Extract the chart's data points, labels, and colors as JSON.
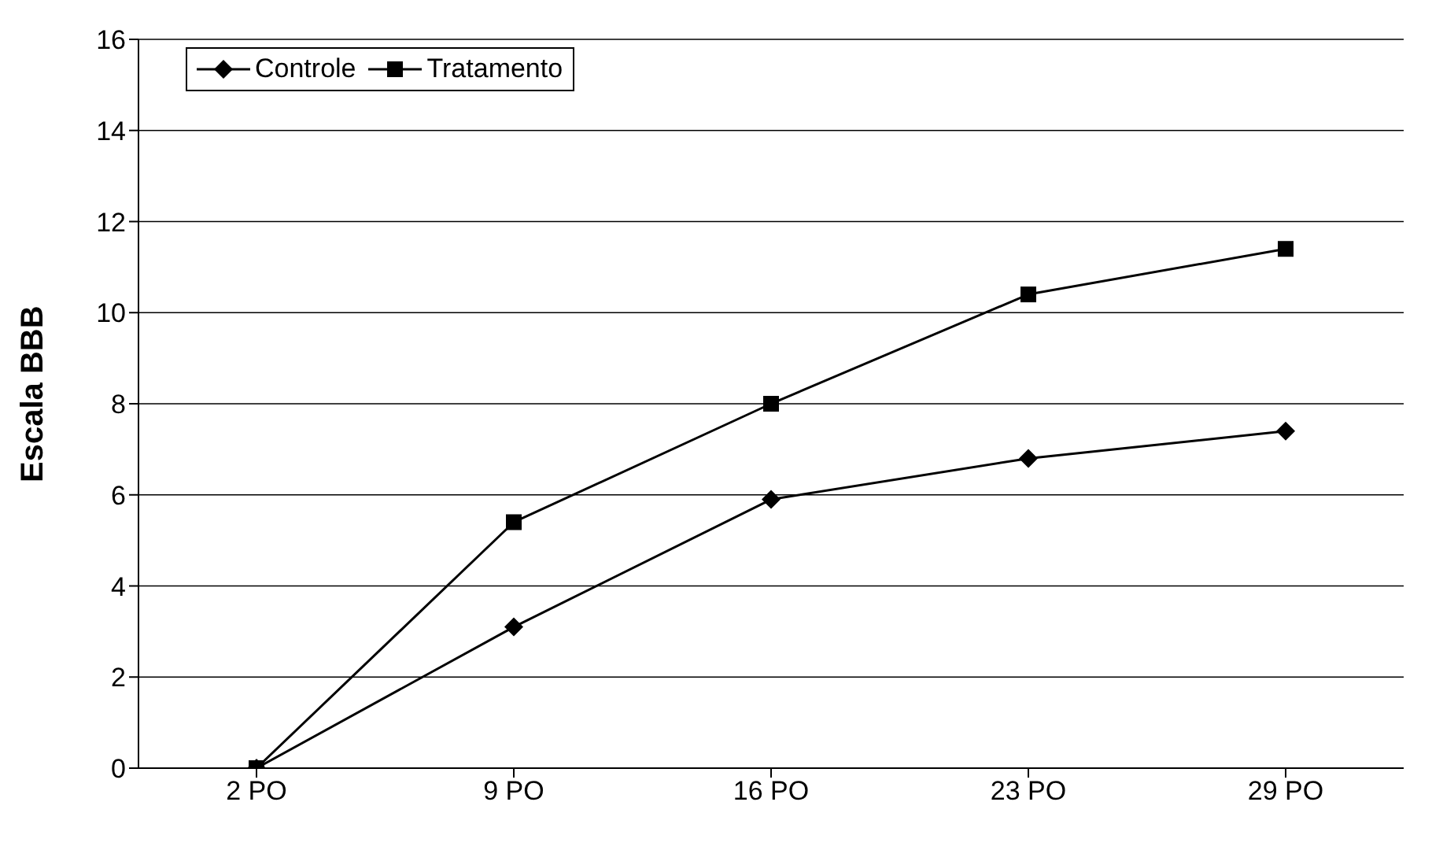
{
  "chart_data": {
    "type": "line",
    "ylabel": "Escala BBB",
    "categories": [
      "2 PO",
      "9 PO",
      "16 PO",
      "23 PO",
      "29 PO"
    ],
    "series": [
      {
        "name": "Controle",
        "color": "#000000",
        "marker": "diamond",
        "values": [
          0,
          3.1,
          5.9,
          6.8,
          7.4
        ]
      },
      {
        "name": "Tratamento",
        "color": "#000000",
        "marker": "square",
        "values": [
          0,
          5.4,
          8.0,
          10.4,
          11.4
        ]
      }
    ],
    "ylim": [
      0,
      16
    ],
    "yticks": [
      0,
      2,
      4,
      6,
      8,
      10,
      12,
      14,
      16
    ],
    "grid": "y",
    "legend": "top left",
    "line_style": "solid"
  }
}
